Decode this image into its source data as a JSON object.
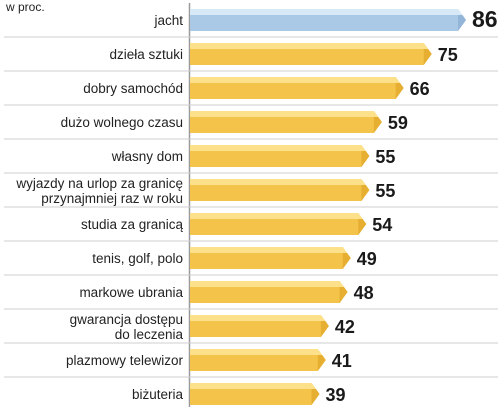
{
  "unit_label": "w proc.",
  "chart_data": {
    "type": "bar",
    "orientation": "horizontal",
    "categories": [
      "jacht",
      "dzieła sztuki",
      "dobry samochód",
      "dużo wolnego czasu",
      "własny dom",
      "wyjazdy na urlop za granicę\nprzynajmniej raz w roku",
      "studia za granicą",
      "tenis, golf, polo",
      "markowe ubrania",
      "gwarancja dostępu\ndo leczenia",
      "plazmowy telewizor",
      "biżuteria"
    ],
    "values": [
      86,
      75,
      66,
      59,
      55,
      55,
      54,
      49,
      48,
      42,
      41,
      39
    ],
    "title": "",
    "xlabel": "",
    "ylabel": "",
    "xlim": [
      0,
      86
    ],
    "highlight_index": 0,
    "grid": false,
    "colors": {
      "bar": "#f4c34a",
      "bar_light": "#fde08a",
      "bar_highlight": "#a9c9e6",
      "bar_highlight_light": "#d7e8f6",
      "value_highlight": "#c8213a",
      "value": "#1a1a1a",
      "divider": "#cfcfcf"
    }
  }
}
